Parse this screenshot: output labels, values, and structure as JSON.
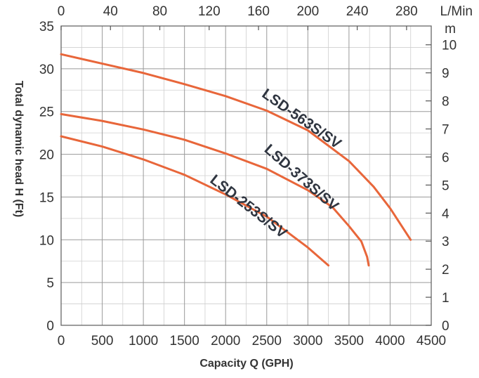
{
  "chart_data": {
    "type": "line",
    "title": "",
    "xlabel": "Capacity Q (GPH)",
    "ylabel": "Total dynamic head H (Ft)",
    "xlim": [
      0,
      4500
    ],
    "ylim": [
      0,
      35
    ],
    "x_ticks": [
      "0",
      "500",
      "1000",
      "1500",
      "2000",
      "2500",
      "3000",
      "3500",
      "4000",
      "4500"
    ],
    "y_ticks": [
      "0",
      "5",
      "10",
      "15",
      "20",
      "25",
      "30",
      "35"
    ],
    "top_axis": {
      "unit": "L/Min",
      "range": [
        0,
        300
      ],
      "ticks": [
        "0",
        "40",
        "80",
        "120",
        "160",
        "200",
        "240",
        "280"
      ]
    },
    "right_axis": {
      "unit": "m",
      "range": [
        0,
        10.67
      ],
      "ticks": [
        "0",
        "1",
        "2",
        "3",
        "4",
        "5",
        "6",
        "7",
        "8",
        "9",
        "10"
      ]
    },
    "series_color": "#e8663a",
    "grid": true,
    "series": [
      {
        "name": "LSD-563S/SV",
        "points": [
          [
            0,
            31.7
          ],
          [
            500,
            30.6
          ],
          [
            1000,
            29.5
          ],
          [
            1500,
            28.2
          ],
          [
            2000,
            26.8
          ],
          [
            2500,
            25.1
          ],
          [
            3000,
            22.8
          ],
          [
            3500,
            19.2
          ],
          [
            3800,
            16.2
          ],
          [
            4000,
            13.7
          ],
          [
            4250,
            10.0
          ]
        ]
      },
      {
        "name": "LSD-373S/SV",
        "points": [
          [
            0,
            24.7
          ],
          [
            500,
            23.9
          ],
          [
            1000,
            22.9
          ],
          [
            1500,
            21.7
          ],
          [
            2000,
            20.1
          ],
          [
            2500,
            18.3
          ],
          [
            3000,
            15.8
          ],
          [
            3300,
            13.8
          ],
          [
            3500,
            11.6
          ],
          [
            3650,
            9.8
          ],
          [
            3720,
            8.0
          ],
          [
            3740,
            7.0
          ]
        ]
      },
      {
        "name": "LSD-253S/SV",
        "points": [
          [
            0,
            22.1
          ],
          [
            500,
            20.9
          ],
          [
            1000,
            19.4
          ],
          [
            1500,
            17.6
          ],
          [
            2000,
            15.3
          ],
          [
            2500,
            12.7
          ],
          [
            3000,
            9.1
          ],
          [
            3250,
            7.0
          ]
        ]
      }
    ]
  }
}
